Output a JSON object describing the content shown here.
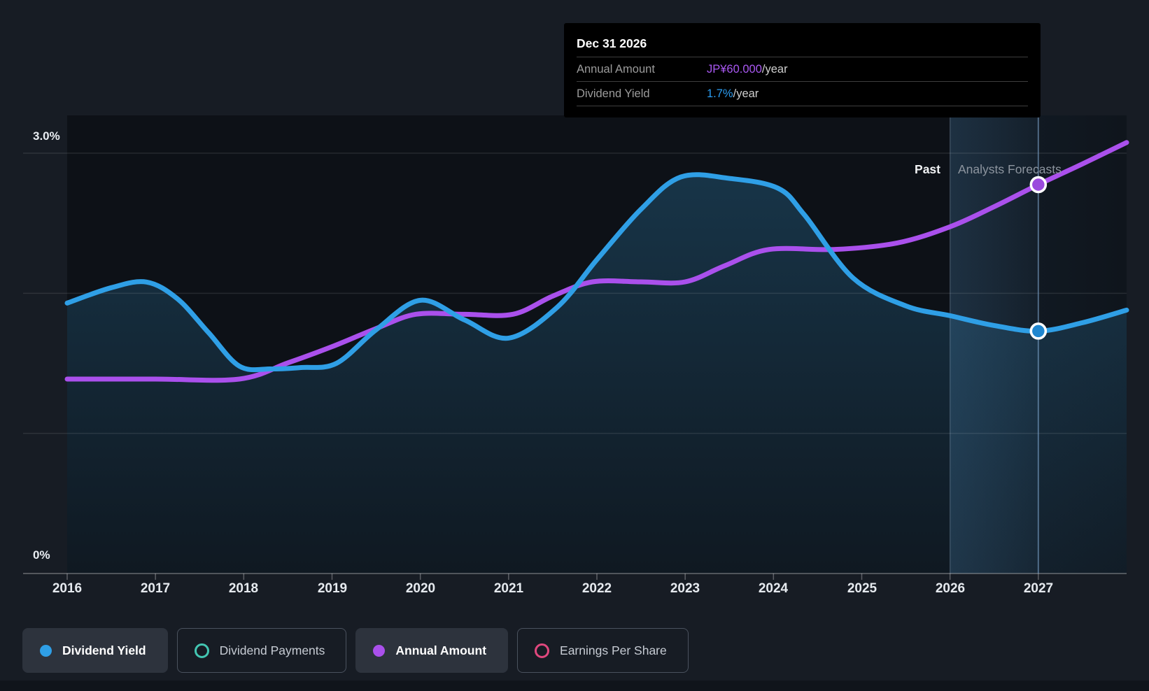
{
  "tooltip": {
    "title": "Dec 31 2026",
    "rows": [
      {
        "label": "Annual Amount",
        "value": "JP¥60.000",
        "suffix": "/year",
        "value_color": "#a958f2"
      },
      {
        "label": "Dividend Yield",
        "value": "1.7%",
        "suffix": "/year",
        "value_color": "#2b9cf0"
      }
    ]
  },
  "axis": {
    "y_top_label": "3.0%",
    "y_bottom_label": "0%",
    "x_labels": [
      "2016",
      "2017",
      "2018",
      "2019",
      "2020",
      "2021",
      "2022",
      "2023",
      "2024",
      "2025",
      "2026",
      "2027"
    ]
  },
  "annotations": {
    "past": "Past",
    "forecast": "Analysts Forecasts"
  },
  "legend": [
    {
      "label": "Dividend Yield",
      "color": "#2f9fe6",
      "filled": true,
      "active": true
    },
    {
      "label": "Dividend Payments",
      "color": "#43c6b2",
      "filled": false,
      "active": false
    },
    {
      "label": "Annual Amount",
      "color": "#aa50ec",
      "filled": true,
      "active": true
    },
    {
      "label": "Earnings Per Share",
      "color": "#e0487e",
      "filled": false,
      "active": false
    }
  ],
  "chart_data": {
    "type": "area",
    "title": "Dividend yield and payments history with analyst forecasts",
    "x_axis": {
      "min": 2016,
      "max": 2028,
      "tick_labels": [
        "2016",
        "2017",
        "2018",
        "2019",
        "2020",
        "2021",
        "2022",
        "2023",
        "2024",
        "2025",
        "2026",
        "2027"
      ]
    },
    "y_axis": {
      "unit": "%",
      "min": 0,
      "max": 3.0,
      "gridline_values": [
        0,
        1,
        2,
        3
      ],
      "top_label": "3.0%",
      "bottom_label": "0%"
    },
    "forecast_start_x": 2026,
    "hover": {
      "x": 2027,
      "date_label": "Dec 31 2026",
      "dividend_yield_pct": 1.73,
      "annual_amount_jpy": 60
    },
    "legend_position": "bottom",
    "grid": "horizontal-only",
    "series": [
      {
        "name": "Dividend Yield",
        "unit": "%",
        "color": "#2f9fe6",
        "marker_fill": "#1f86cf",
        "area": true,
        "points": [
          [
            2016.0,
            1.93
          ],
          [
            2016.5,
            2.04
          ],
          [
            2016.9,
            2.08
          ],
          [
            2017.25,
            1.96
          ],
          [
            2017.6,
            1.72
          ],
          [
            2017.95,
            1.48
          ],
          [
            2018.3,
            1.46
          ],
          [
            2018.65,
            1.47
          ],
          [
            2019.05,
            1.5
          ],
          [
            2019.5,
            1.74
          ],
          [
            2020.0,
            1.95
          ],
          [
            2020.5,
            1.81
          ],
          [
            2021.0,
            1.68
          ],
          [
            2021.55,
            1.9
          ],
          [
            2022.0,
            2.24
          ],
          [
            2022.5,
            2.6
          ],
          [
            2022.95,
            2.83
          ],
          [
            2023.5,
            2.82
          ],
          [
            2024.05,
            2.75
          ],
          [
            2024.35,
            2.56
          ],
          [
            2024.9,
            2.11
          ],
          [
            2025.5,
            1.91
          ],
          [
            2026.0,
            1.84
          ],
          [
            2026.5,
            1.77
          ],
          [
            2027.0,
            1.73
          ],
          [
            2027.5,
            1.79
          ],
          [
            2028.0,
            1.88
          ]
        ]
      },
      {
        "name": "Annual Amount",
        "unit": "JP¥",
        "color": "#aa50ec",
        "marker_fill": "#9a49dd",
        "area": false,
        "points": [
          [
            2016.0,
            30
          ],
          [
            2017.0,
            30
          ],
          [
            2017.95,
            30
          ],
          [
            2018.5,
            32.5
          ],
          [
            2019.0,
            35
          ],
          [
            2019.5,
            37.8
          ],
          [
            2019.95,
            40
          ],
          [
            2020.5,
            40
          ],
          [
            2021.05,
            40
          ],
          [
            2021.5,
            42.8
          ],
          [
            2021.95,
            45
          ],
          [
            2022.5,
            45
          ],
          [
            2023.0,
            45
          ],
          [
            2023.45,
            47.5
          ],
          [
            2023.95,
            50
          ],
          [
            2024.7,
            50
          ],
          [
            2025.4,
            51
          ],
          [
            2026.0,
            53.5
          ],
          [
            2026.5,
            56.6
          ],
          [
            2027.0,
            60
          ],
          [
            2027.5,
            63.2
          ],
          [
            2028.0,
            66.5
          ]
        ]
      }
    ]
  }
}
